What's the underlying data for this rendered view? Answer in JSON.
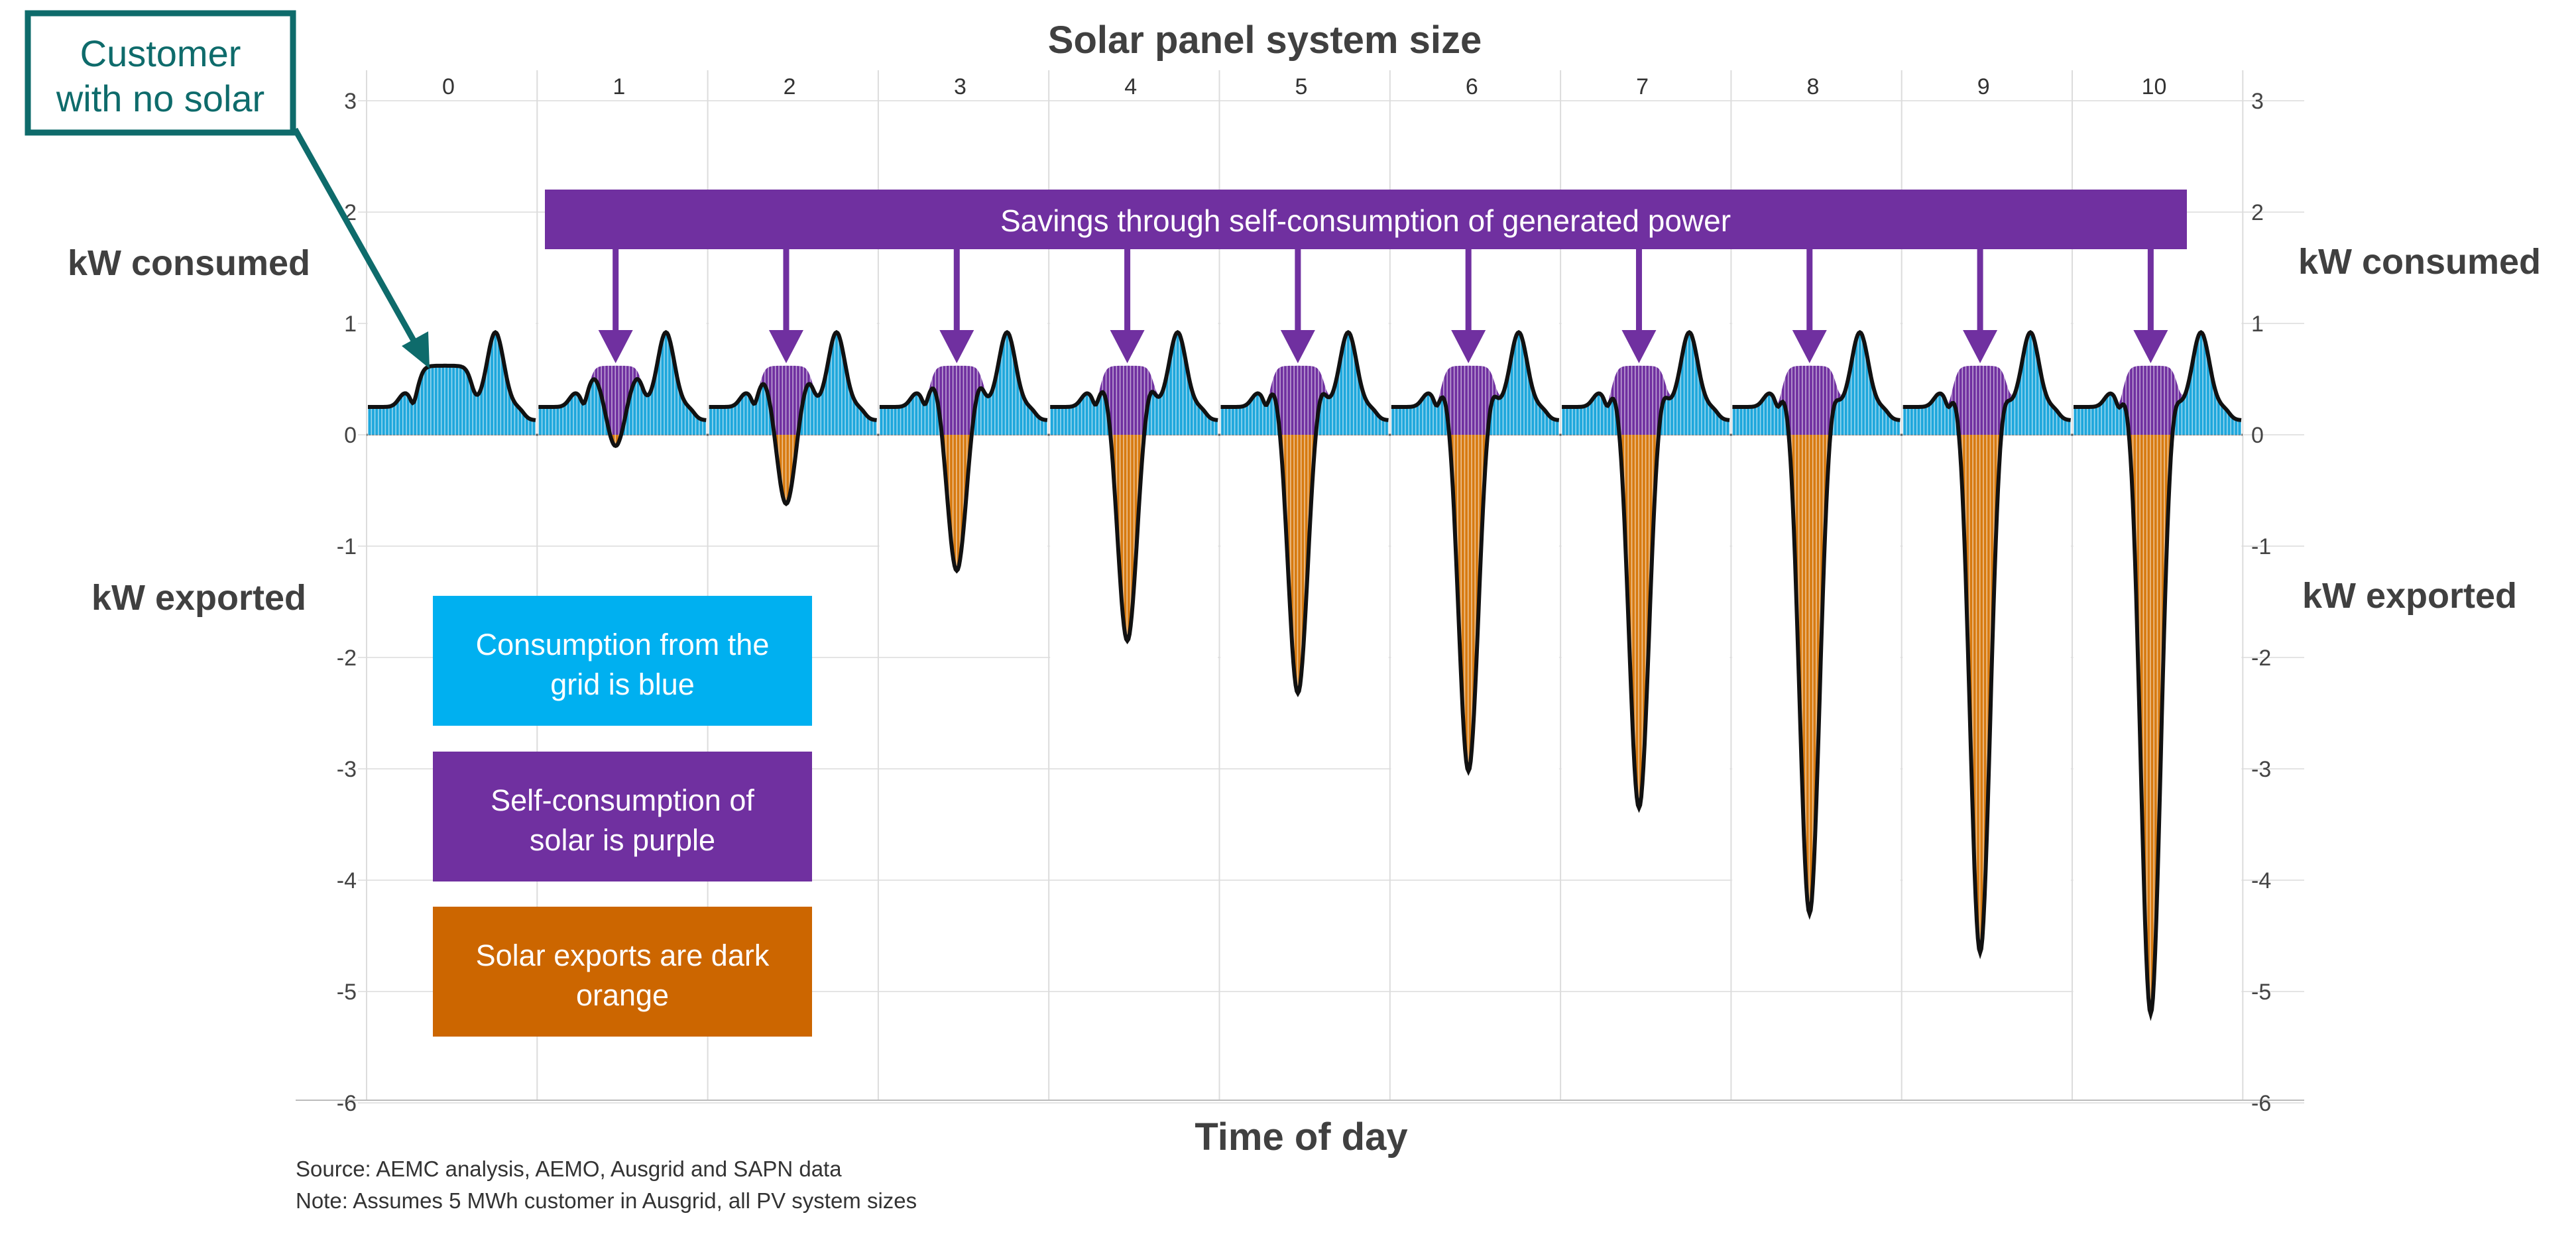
{
  "chart_data": {
    "type": "area",
    "title": "Solar panel system size",
    "xlabel": "Time of day",
    "ylabel_top_left": "kW consumed",
    "ylabel_bottom_left": "kW exported",
    "ylabel_top_right": "kW consumed",
    "ylabel_bottom_right": "kW exported",
    "ylim": [
      -6,
      3
    ],
    "yticks": [
      3,
      2,
      1,
      0,
      -1,
      -2,
      -3,
      -4,
      -5,
      -6
    ],
    "grid": true,
    "panel_labels": [
      "0",
      "1",
      "2",
      "3",
      "4",
      "5",
      "6",
      "7",
      "8",
      "9",
      "10"
    ],
    "system_size_kw": [
      0,
      1,
      2,
      3,
      4,
      5,
      6,
      7,
      8,
      9,
      10
    ],
    "peak_export_kw": [
      0,
      -0.1,
      -0.62,
      -1.22,
      -1.85,
      -2.32,
      -3.02,
      -3.35,
      -4.3,
      -4.65,
      -5.2
    ],
    "self_consumption_kw": [
      0,
      0.6,
      0.62,
      0.62,
      0.62,
      0.62,
      0.62,
      0.62,
      0.62,
      0.62,
      0.62
    ],
    "midday_load_kw": 0.62,
    "evening_peak_kw": 0.92,
    "overnight_load_kw": 0.25,
    "series": [
      {
        "name": "Consumption from the grid",
        "color": "#1ea7dc"
      },
      {
        "name": "Self-consumption of solar",
        "color": "#7030a0"
      },
      {
        "name": "Solar exports",
        "color": "#d77a10"
      }
    ],
    "legend": [
      {
        "text": "Consumption from the grid is blue",
        "color": "#00b0f0"
      },
      {
        "text": "Self-consumption of solar is purple",
        "color": "#7030a0"
      },
      {
        "text": "Solar exports are dark orange",
        "color": "#cc6600"
      }
    ],
    "banner": "Savings through self-consumption of generated power",
    "callout": "Customer with no solar"
  },
  "source": "Source: AEMC analysis, AEMO, Ausgrid and SAPN data",
  "note": "Note: Assumes 5 MWh customer in Ausgrid, all PV system sizes",
  "colors": {
    "blue": "#1ea7dc",
    "purple": "#7030a0",
    "orange": "#d77a10",
    "callout": "#0e6b6b",
    "text": "#404040"
  }
}
